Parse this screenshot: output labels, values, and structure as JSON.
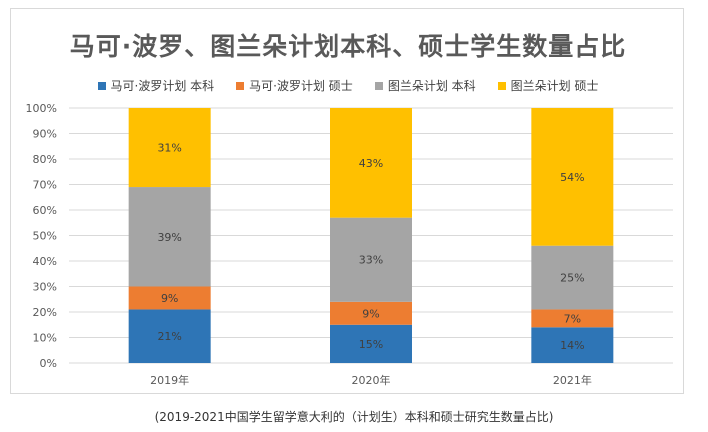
{
  "chart_data": {
    "type": "bar",
    "stacked": true,
    "percent_stacked": true,
    "title": "马可·波罗、图兰朵计划本科、硕士学生数量占比",
    "categories": [
      "2019年",
      "2020年",
      "2021年"
    ],
    "series": [
      {
        "name": "马可·波罗计划 本科",
        "values": [
          21,
          15,
          14
        ],
        "labels": [
          "21%",
          "15%",
          "14%"
        ],
        "color": "#2E75B6"
      },
      {
        "name": "马可·波罗计划 硕士",
        "values": [
          9,
          9,
          7
        ],
        "labels": [
          "9%",
          "9%",
          "7%"
        ],
        "color": "#ED7D31"
      },
      {
        "name": "图兰朵计划 本科",
        "values": [
          39,
          33,
          25
        ],
        "labels": [
          "39%",
          "33%",
          "25%"
        ],
        "color": "#A5A5A5"
      },
      {
        "name": "图兰朵计划 硕士",
        "values": [
          31,
          43,
          54
        ],
        "labels": [
          "31%",
          "43%",
          "54%"
        ],
        "color": "#FFC000"
      }
    ],
    "ylim": [
      0,
      100
    ],
    "yticks": [
      "0%",
      "10%",
      "20%",
      "30%",
      "40%",
      "50%",
      "60%",
      "70%",
      "80%",
      "90%",
      "100%"
    ],
    "grid": true,
    "legend_position": "top"
  },
  "caption": "(2019-2021中国学生留学意大利的（计划生）本科和硕士研究生数量占比)"
}
